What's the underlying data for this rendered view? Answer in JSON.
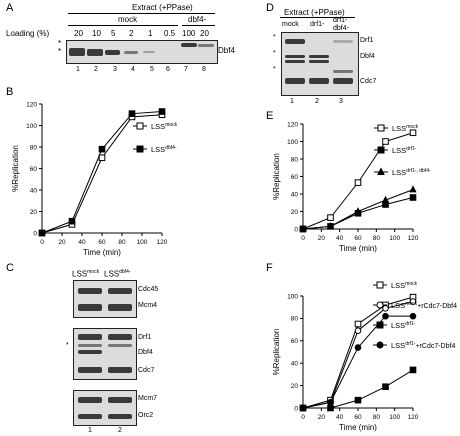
{
  "panels": {
    "A": {
      "label": "A",
      "extract_title": "Extract (+PPase)",
      "group_mock": "mock",
      "group_dbf4": "dbf4-",
      "loading_label": "Loading (%)",
      "loadings": [
        "20",
        "10",
        "5",
        "2",
        "1",
        "0.5",
        "100",
        "20"
      ],
      "lanes": [
        "1",
        "2",
        "3",
        "4",
        "5",
        "6",
        "7",
        "8"
      ],
      "band_label": "Dbf4",
      "star1": "*",
      "star2": "*"
    },
    "B": {
      "label": "B"
    },
    "C": {
      "label": "C",
      "col1": "LSS",
      "col1_sup": "mock",
      "col2": "LSS",
      "col2_sup": "dbf4-",
      "blot1": [
        "Cdc45",
        "Mcm4"
      ],
      "blot2": [
        "Drf1",
        "Dbf4",
        "Cdc7"
      ],
      "blot3": [
        "Mcm7",
        "Orc2"
      ],
      "lanes": [
        "1",
        "2"
      ],
      "star": "*"
    },
    "D": {
      "label": "D",
      "extract_title": "Extract (+PPase)",
      "cols": [
        "mock",
        "drf1-",
        "drf1-\ndbf4-"
      ],
      "bands": [
        "Drf1",
        "Dbf4",
        "Cdc7"
      ],
      "lanes": [
        "1",
        "2",
        "3"
      ],
      "stars": [
        "*",
        "*",
        "*"
      ]
    },
    "E": {
      "label": "E"
    },
    "F": {
      "label": "F"
    }
  },
  "chart_data": [
    {
      "id": "B",
      "type": "line",
      "xlabel": "Time (min)",
      "ylabel": "%Replication",
      "xlim": [
        0,
        120
      ],
      "ylim": [
        0,
        120
      ],
      "xticks": [
        0,
        20,
        40,
        60,
        80,
        100,
        120
      ],
      "yticks": [
        0,
        20,
        40,
        60,
        80,
        100,
        120
      ],
      "series": [
        {
          "name": "LSS",
          "sup": "mock",
          "marker": "open-square",
          "x": [
            0,
            30,
            60,
            90,
            120
          ],
          "y": [
            0,
            8,
            70,
            108,
            110
          ]
        },
        {
          "name": "LSS",
          "sup": "dbf4-",
          "marker": "filled-square",
          "x": [
            0,
            30,
            60,
            90,
            120
          ],
          "y": [
            0,
            11,
            78,
            111,
            113
          ]
        }
      ]
    },
    {
      "id": "E",
      "type": "line",
      "xlabel": "Time (min)",
      "ylabel": "%Replication",
      "xlim": [
        0,
        120
      ],
      "ylim": [
        0,
        120
      ],
      "xticks": [
        0,
        20,
        40,
        60,
        80,
        100,
        120
      ],
      "yticks": [
        0,
        20,
        40,
        60,
        80,
        100,
        120
      ],
      "series": [
        {
          "name": "LSS",
          "sup": "mock",
          "marker": "open-square",
          "x": [
            0,
            30,
            60,
            90,
            120
          ],
          "y": [
            0,
            13,
            53,
            100,
            110
          ]
        },
        {
          "name": "LSS",
          "sup": "drf1-",
          "marker": "filled-square",
          "x": [
            0,
            30,
            60,
            90,
            120
          ],
          "y": [
            0,
            3,
            18,
            28,
            36
          ]
        },
        {
          "name": "LSS",
          "sup": "drf1-, dbf4-",
          "marker": "filled-triangle",
          "x": [
            0,
            30,
            60,
            90,
            120
          ],
          "y": [
            0,
            3,
            20,
            33,
            45
          ]
        }
      ]
    },
    {
      "id": "F",
      "type": "line",
      "xlabel": "Time (min)",
      "ylabel": "%Replication",
      "xlim": [
        0,
        120
      ],
      "ylim": [
        0,
        100
      ],
      "xticks": [
        0,
        20,
        40,
        60,
        80,
        100,
        120
      ],
      "yticks": [
        0,
        20,
        40,
        60,
        80,
        100
      ],
      "series": [
        {
          "name": "LSS",
          "sup": "mock",
          "marker": "open-square",
          "x": [
            0,
            30,
            60,
            90,
            120
          ],
          "y": [
            0,
            7,
            75,
            92,
            99
          ]
        },
        {
          "name": "LSS",
          "sup": "mock",
          "suffix": "+rCdc7-Dbf4",
          "marker": "open-circle",
          "x": [
            0,
            30,
            60,
            90,
            120
          ],
          "y": [
            0,
            5,
            69,
            89,
            95
          ]
        },
        {
          "name": "LSS",
          "sup": "drf1-",
          "marker": "filled-square",
          "x": [
            0,
            30,
            60,
            90,
            120
          ],
          "y": [
            0,
            0,
            7,
            19,
            34
          ]
        },
        {
          "name": "LSS",
          "sup": "drf1-",
          "suffix": "+rCdc7-Dbf4",
          "marker": "filled-circle",
          "x": [
            0,
            30,
            60,
            90,
            120
          ],
          "y": [
            0,
            5,
            54,
            82,
            82
          ]
        }
      ]
    }
  ]
}
